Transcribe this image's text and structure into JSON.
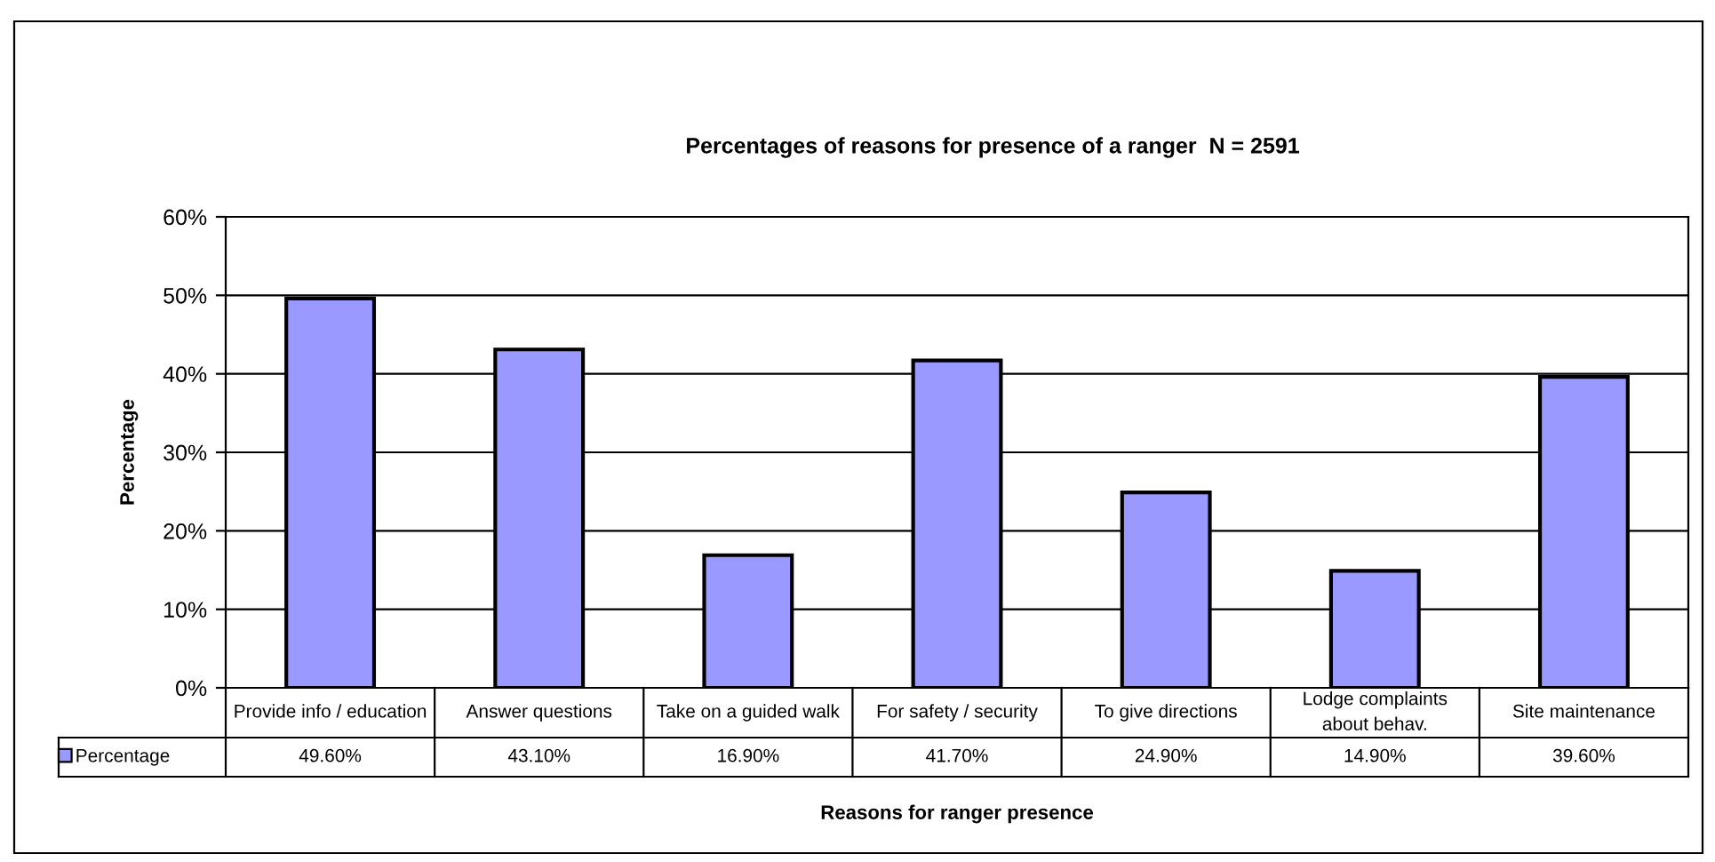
{
  "chart_data": {
    "type": "bar",
    "title": "Percentages of reasons for presence of a ranger  N = 2591",
    "xlabel": "Reasons for ranger presence",
    "ylabel": "Percentage",
    "categories": [
      "Provide info / education",
      "Answer questions",
      "Take on a guided walk",
      "For safety / security",
      "To give directions",
      "Lodge complaints about behav.",
      "Site maintenance"
    ],
    "series": [
      {
        "name": "Percentage",
        "color": "#9999ff",
        "values": [
          49.6,
          43.1,
          16.9,
          41.7,
          24.9,
          14.9,
          39.6
        ],
        "value_labels": [
          "49.60%",
          "43.10%",
          "16.90%",
          "41.70%",
          "24.90%",
          "14.90%",
          "39.60%"
        ]
      }
    ],
    "ylim": [
      0,
      60
    ],
    "yticks": [
      {
        "value": 0,
        "label": "0%"
      },
      {
        "value": 10,
        "label": "10%"
      },
      {
        "value": 20,
        "label": "20%"
      },
      {
        "value": 30,
        "label": "30%"
      },
      {
        "value": 40,
        "label": "40%"
      },
      {
        "value": 50,
        "label": "50%"
      },
      {
        "value": 60,
        "label": "60%"
      }
    ],
    "grid": "y",
    "legend": "bottom left"
  }
}
